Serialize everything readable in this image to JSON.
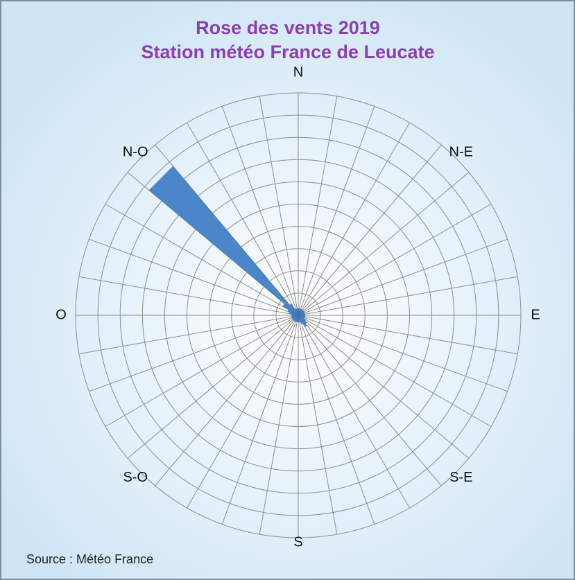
{
  "chart_data": {
    "type": "windrose",
    "title": "Rose des vents 2019",
    "subtitle": "Station météo France de Leucate",
    "source": "Source : Météo France",
    "direction_labels": [
      "N",
      "N-E",
      "E",
      "S-E",
      "S",
      "S-O",
      "O",
      "N-O"
    ],
    "series": [
      {
        "color": "#4a86c8",
        "values": [
          0.3,
          0.3,
          0.3,
          0.3,
          0.3,
          0.3,
          0.3,
          0.3,
          0.3,
          0.3,
          0.3,
          0.3,
          0.4,
          0.5,
          0.6,
          0.4,
          0.3,
          0.3,
          0.3,
          0.3,
          0.3,
          0.3,
          0.3,
          0.3,
          0.3,
          0.3,
          0.3,
          0.3,
          0.4,
          0.5,
          0.8,
          8.75,
          0.6,
          0.3,
          0.3,
          0.3
        ]
      }
    ],
    "rlim": [
      0,
      10
    ],
    "rticks": [
      1,
      2,
      3,
      4,
      5,
      6,
      7,
      8,
      9,
      10
    ],
    "spokes": 36,
    "grid": true
  }
}
